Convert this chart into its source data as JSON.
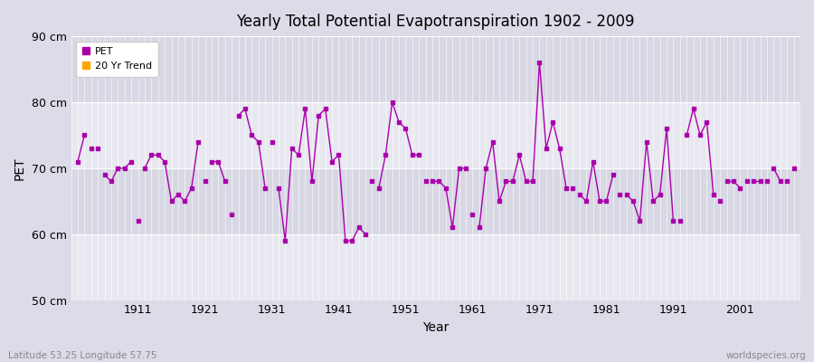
{
  "title": "Yearly Total Potential Evapotranspiration 1902 - 2009",
  "xlabel": "Year",
  "ylabel": "PET",
  "xlim": [
    1901,
    2010
  ],
  "ylim": [
    50,
    90
  ],
  "yticks": [
    50,
    60,
    70,
    80,
    90
  ],
  "ytick_labels": [
    "50 cm",
    "60 cm",
    "70 cm",
    "80 cm",
    "90 cm"
  ],
  "xticks": [
    1911,
    1921,
    1931,
    1941,
    1951,
    1961,
    1971,
    1981,
    1991,
    2001
  ],
  "bg_color": "#dcdce8",
  "stripe_light": "#e8e8f0",
  "stripe_dark": "#d8d8e4",
  "pet_color": "#aa00aa",
  "trend_color": "#ffa500",
  "footer_left": "Latitude 53.25 Longitude 57.75",
  "footer_right": "worldspecies.org",
  "years": [
    1902,
    1903,
    1904,
    1905,
    1906,
    1907,
    1908,
    1909,
    1910,
    1911,
    1912,
    1913,
    1914,
    1915,
    1916,
    1917,
    1918,
    1919,
    1920,
    1921,
    1922,
    1923,
    1924,
    1925,
    1926,
    1927,
    1928,
    1929,
    1930,
    1931,
    1932,
    1933,
    1934,
    1935,
    1936,
    1937,
    1938,
    1939,
    1940,
    1941,
    1942,
    1943,
    1944,
    1945,
    1946,
    1947,
    1948,
    1949,
    1950,
    1951,
    1952,
    1953,
    1954,
    1955,
    1956,
    1957,
    1958,
    1959,
    1960,
    1961,
    1962,
    1963,
    1964,
    1965,
    1966,
    1967,
    1968,
    1969,
    1970,
    1971,
    1972,
    1973,
    1974,
    1975,
    1976,
    1977,
    1978,
    1979,
    1980,
    1981,
    1982,
    1983,
    1984,
    1985,
    1986,
    1987,
    1988,
    1989,
    1990,
    1991,
    1992,
    1993,
    1994,
    1995,
    1996,
    1997,
    1998,
    1999,
    2000,
    2001,
    2002,
    2003,
    2004,
    2005,
    2006,
    2007,
    2008,
    2009
  ],
  "pet_values": [
    71,
    75,
    73,
    73,
    69,
    68,
    70,
    70,
    71,
    62,
    70,
    72,
    72,
    71,
    65,
    66,
    65,
    67,
    74,
    68,
    71,
    71,
    68,
    63,
    78,
    79,
    75,
    74,
    67,
    74,
    67,
    59,
    73,
    72,
    79,
    68,
    78,
    79,
    71,
    72,
    59,
    59,
    61,
    60,
    68,
    67,
    72,
    80,
    77,
    76,
    72,
    72,
    68,
    68,
    68,
    67,
    61,
    70,
    70,
    63,
    61,
    70,
    74,
    65,
    68,
    68,
    72,
    68,
    68,
    86,
    73,
    77,
    73,
    67,
    67,
    66,
    65,
    71,
    65,
    65,
    69,
    66,
    66,
    65,
    62,
    74,
    65,
    66,
    76,
    62,
    62,
    75,
    79,
    75,
    77,
    66,
    65,
    68,
    68,
    67,
    68,
    68,
    68,
    68,
    70,
    68,
    68,
    70
  ],
  "connected_years": [
    [
      1902,
      1903
    ],
    [
      1906,
      1907,
      1908,
      1909,
      1910
    ],
    [
      1912,
      1913,
      1914,
      1915,
      1916,
      1917,
      1918,
      1919,
      1920
    ],
    [
      1922,
      1923,
      1924
    ],
    [
      1926,
      1927,
      1928,
      1929,
      1930
    ],
    [
      1932,
      1933,
      1934,
      1935,
      1936,
      1937,
      1938,
      1939,
      1940,
      1941,
      1942,
      1943,
      1944,
      1945
    ],
    [
      1947,
      1948,
      1949,
      1950,
      1951,
      1952,
      1953
    ],
    [
      1955,
      1956,
      1957,
      1958,
      1959,
      1960
    ],
    [
      1962,
      1963,
      1964,
      1965,
      1966,
      1967,
      1968,
      1969,
      1970,
      1971,
      1972,
      1973,
      1974,
      1975
    ],
    [
      1977,
      1978,
      1979,
      1980,
      1981,
      1982
    ],
    [
      1984,
      1985,
      1986,
      1987,
      1988,
      1989,
      1990,
      1991
    ],
    [
      1993,
      1994,
      1995,
      1996,
      1997
    ],
    [
      1999,
      2000,
      2001
    ],
    [
      2003,
      2004
    ],
    [
      2006,
      2007
    ],
    [
      2009
    ]
  ]
}
